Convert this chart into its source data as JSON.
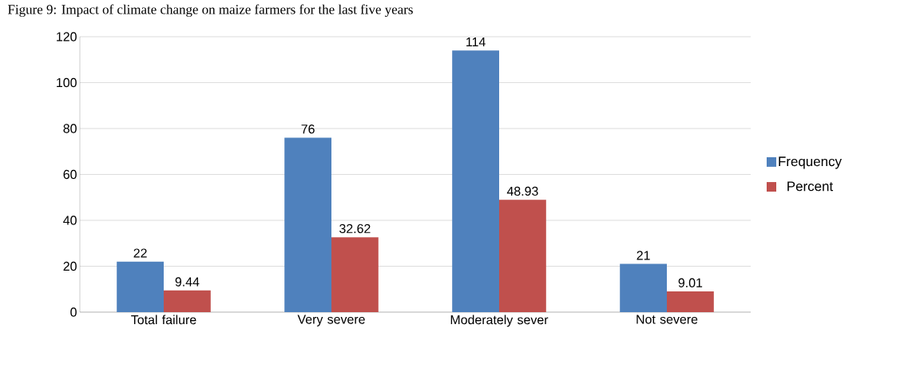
{
  "chart_data": {
    "type": "bar",
    "title": "Figure 9: Impact of climate change on maize farmers for the last five years",
    "categories": [
      "Total failure",
      "Very severe",
      "Moderately sever",
      "Not severe"
    ],
    "series": [
      {
        "name": "Frequency",
        "color": "#4f81bd",
        "values": [
          22,
          76,
          114,
          21
        ]
      },
      {
        "name": "Percent",
        "color": "#c0504d",
        "values": [
          9.44,
          32.62,
          48.93,
          9.01
        ]
      }
    ],
    "ylim": [
      0,
      120
    ],
    "yticks": [
      0,
      20,
      40,
      60,
      80,
      100,
      120
    ],
    "grid": "y",
    "legend": "right",
    "data_labels": true
  }
}
